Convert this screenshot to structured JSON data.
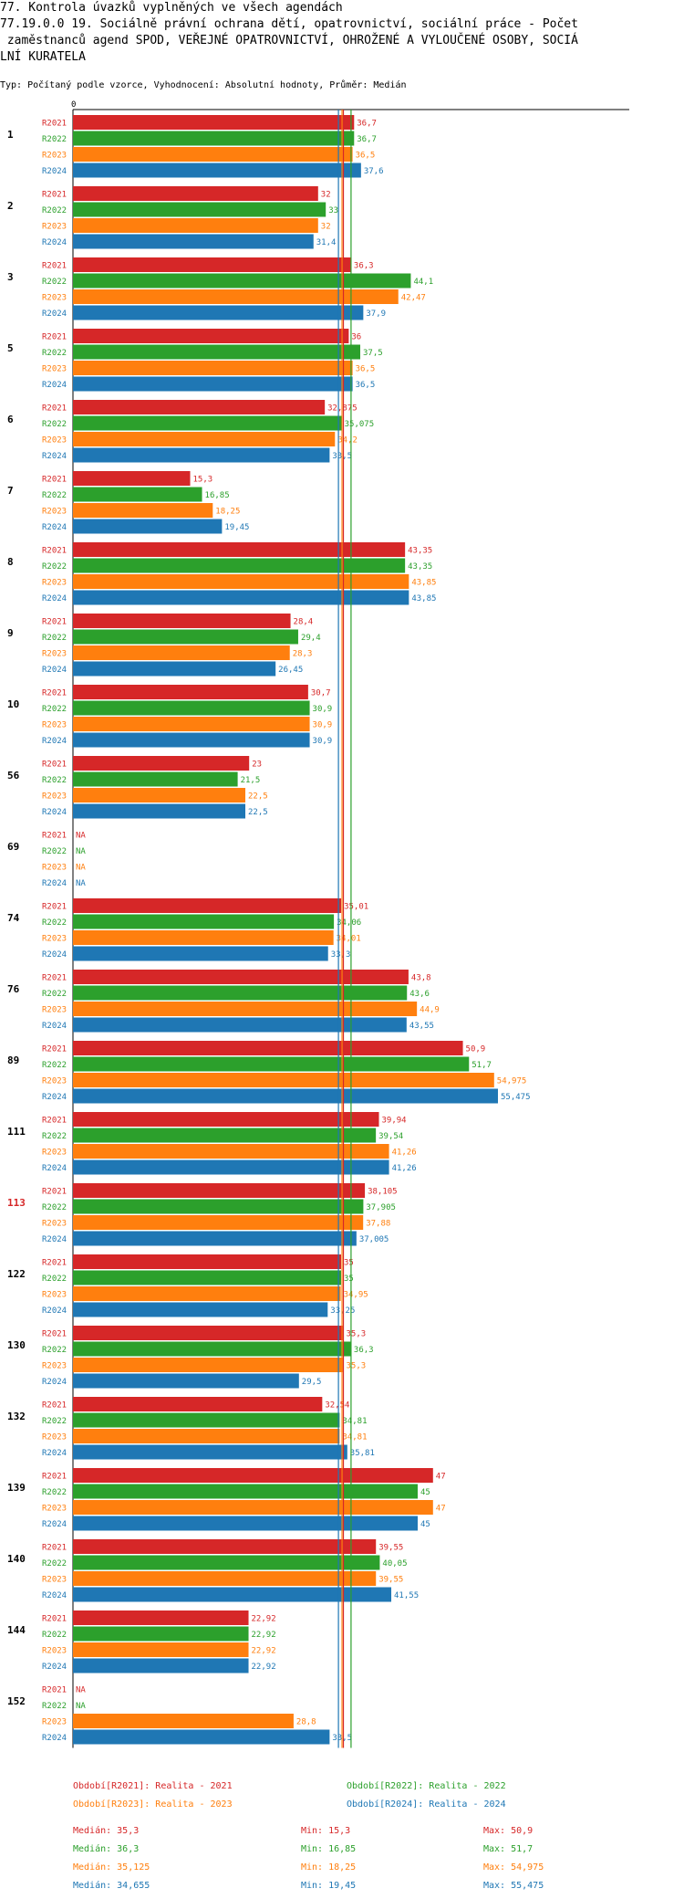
{
  "header": {
    "line1": "77. Kontrola úvazků vyplněných ve všech agendách",
    "line2": "77.19.0.0 19. Sociálně právní ochrana dětí, opatrovnictví, sociální práce - Počet",
    "line3": " zaměstnanců agend SPOD, VEŘEJNÉ OPATROVNICTVÍ, OHROŽENÉ A VYLOUČENÉ OSOBY, SOCIÁ",
    "line4": "LNÍ KURATELA",
    "subtitle": "Typ: Počítaný podle vzorce, Vyhodnocení: Absolutní hodnoty, Průměr: Medián"
  },
  "colors": {
    "R2021": "#d62728",
    "R2022": "#2ca02c",
    "R2023": "#ff7f0e",
    "R2024": "#1f77b4",
    "highlight": "#d62728",
    "axis": "#000000"
  },
  "chart_data": {
    "type": "bar",
    "orientation": "horizontal",
    "axis_zero_label": "0",
    "xlim": [
      0,
      60
    ],
    "series_names": [
      "R2021",
      "R2022",
      "R2023",
      "R2024"
    ],
    "highlighted_category": "113",
    "medians": {
      "R2021": 35.3,
      "R2022": 36.3,
      "R2023": 35.125,
      "R2024": 34.655
    },
    "categories": [
      {
        "id": "1",
        "values": [
          36.7,
          36.7,
          36.5,
          37.6
        ],
        "labels": [
          "36,7",
          "36,7",
          "36,5",
          "37,6"
        ]
      },
      {
        "id": "2",
        "values": [
          32,
          33,
          32,
          31.4
        ],
        "labels": [
          "32",
          "33",
          "32",
          "31,4"
        ]
      },
      {
        "id": "3",
        "values": [
          36.3,
          44.1,
          42.47,
          37.9
        ],
        "labels": [
          "36,3",
          "44,1",
          "42,47",
          "37,9"
        ]
      },
      {
        "id": "5",
        "values": [
          36,
          37.5,
          36.5,
          36.5
        ],
        "labels": [
          "36",
          "37,5",
          "36,5",
          "36,5"
        ]
      },
      {
        "id": "6",
        "values": [
          32.875,
          35.075,
          34.2,
          33.5
        ],
        "labels": [
          "32,875",
          "35,075",
          "34,2",
          "33,5"
        ]
      },
      {
        "id": "7",
        "values": [
          15.3,
          16.85,
          18.25,
          19.45
        ],
        "labels": [
          "15,3",
          "16,85",
          "18,25",
          "19,45"
        ]
      },
      {
        "id": "8",
        "values": [
          43.35,
          43.35,
          43.85,
          43.85
        ],
        "labels": [
          "43,35",
          "43,35",
          "43,85",
          "43,85"
        ]
      },
      {
        "id": "9",
        "values": [
          28.4,
          29.4,
          28.3,
          26.45
        ],
        "labels": [
          "28,4",
          "29,4",
          "28,3",
          "26,45"
        ]
      },
      {
        "id": "10",
        "values": [
          30.7,
          30.9,
          30.9,
          30.9
        ],
        "labels": [
          "30,7",
          "30,9",
          "30,9",
          "30,9"
        ]
      },
      {
        "id": "56",
        "values": [
          23,
          21.5,
          22.5,
          22.5
        ],
        "labels": [
          "23",
          "21,5",
          "22,5",
          "22,5"
        ]
      },
      {
        "id": "69",
        "values": [
          null,
          null,
          null,
          null
        ],
        "labels": [
          "NA",
          "NA",
          "NA",
          "NA"
        ]
      },
      {
        "id": "74",
        "values": [
          35.01,
          34.06,
          34.01,
          33.3
        ],
        "labels": [
          "35,01",
          "34,06",
          "34,01",
          "33,3"
        ]
      },
      {
        "id": "76",
        "values": [
          43.8,
          43.6,
          44.9,
          43.55
        ],
        "labels": [
          "43,8",
          "43,6",
          "44,9",
          "43,55"
        ]
      },
      {
        "id": "89",
        "values": [
          50.9,
          51.7,
          54.975,
          55.475
        ],
        "labels": [
          "50,9",
          "51,7",
          "54,975",
          "55,475"
        ]
      },
      {
        "id": "111",
        "values": [
          39.94,
          39.54,
          41.26,
          41.26
        ],
        "labels": [
          "39,94",
          "39,54",
          "41,26",
          "41,26"
        ]
      },
      {
        "id": "113",
        "values": [
          38.105,
          37.905,
          37.88,
          37.005
        ],
        "labels": [
          "38,105",
          "37,905",
          "37,88",
          "37,005"
        ]
      },
      {
        "id": "122",
        "values": [
          35,
          35,
          34.95,
          33.25
        ],
        "labels": [
          "35",
          "35",
          "34,95",
          "33,25"
        ]
      },
      {
        "id": "130",
        "values": [
          35.3,
          36.3,
          35.3,
          29.5
        ],
        "labels": [
          "35,3",
          "36,3",
          "35,3",
          "29,5"
        ]
      },
      {
        "id": "132",
        "values": [
          32.54,
          34.81,
          34.81,
          35.81
        ],
        "labels": [
          "32,54",
          "34,81",
          "34,81",
          "35,81"
        ]
      },
      {
        "id": "139",
        "values": [
          47,
          45,
          47,
          45
        ],
        "labels": [
          "47",
          "45",
          "47",
          "45"
        ]
      },
      {
        "id": "140",
        "values": [
          39.55,
          40.05,
          39.55,
          41.55
        ],
        "labels": [
          "39,55",
          "40,05",
          "39,55",
          "41,55"
        ]
      },
      {
        "id": "144",
        "values": [
          22.92,
          22.92,
          22.92,
          22.92
        ],
        "labels": [
          "22,92",
          "22,92",
          "22,92",
          "22,92"
        ]
      },
      {
        "id": "152",
        "values": [
          null,
          null,
          28.8,
          33.5
        ],
        "labels": [
          "NA",
          "NA",
          "28,8",
          "33,5"
        ]
      }
    ]
  },
  "legend": {
    "R2021": "Období[R2021]: Realita - 2021",
    "R2022": "Období[R2022]: Realita - 2022",
    "R2023": "Období[R2023]: Realita - 2023",
    "R2024": "Období[R2024]: Realita - 2024"
  },
  "stats": [
    {
      "series": "R2021",
      "median": "Medián: 35,3",
      "min": "Min: 15,3",
      "max": "Max: 50,9"
    },
    {
      "series": "R2022",
      "median": "Medián: 36,3",
      "min": "Min: 16,85",
      "max": "Max: 51,7"
    },
    {
      "series": "R2023",
      "median": "Medián: 35,125",
      "min": "Min: 18,25",
      "max": "Max: 54,975"
    },
    {
      "series": "R2024",
      "median": "Medián: 34,655",
      "min": "Min: 19,45",
      "max": "Max: 55,475"
    }
  ]
}
